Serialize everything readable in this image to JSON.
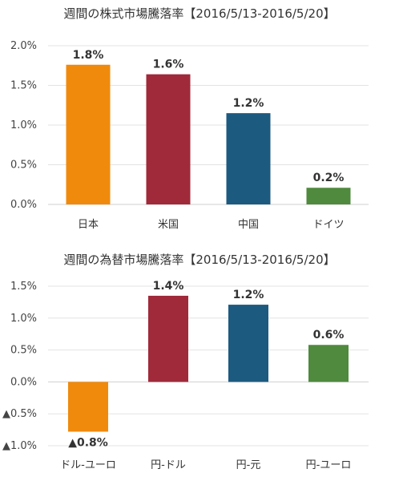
{
  "chart_data": [
    {
      "type": "bar",
      "title": "週間の株式市場騰落率【2016/5/13-2016/5/20】",
      "categories": [
        "日本",
        "米国",
        "中国",
        "ドイツ"
      ],
      "values": [
        1.76,
        1.64,
        1.15,
        0.21
      ],
      "data_labels": [
        "1.8%",
        "1.6%",
        "1.2%",
        "0.2%"
      ],
      "colors": [
        "#f08a0c",
        "#a02a3a",
        "#1d5a80",
        "#4f8a3e"
      ],
      "ylim": [
        0,
        2.0
      ],
      "yticks": [
        0,
        0.5,
        1.0,
        1.5,
        2.0
      ],
      "ytick_labels": [
        "0.0%",
        "0.5%",
        "1.0%",
        "1.5%",
        "2.0%"
      ],
      "grid": true,
      "legend": "none",
      "xlabel": "",
      "ylabel": ""
    },
    {
      "type": "bar",
      "title": "週間の為替市場騰落率【2016/5/13-2016/5/20】",
      "categories": [
        "ドル-ユーロ",
        "円-ドル",
        "円-元",
        "円-ユーロ"
      ],
      "values": [
        -0.78,
        1.35,
        1.21,
        0.58
      ],
      "data_labels": [
        "▲0.8%",
        "1.4%",
        "1.2%",
        "0.6%"
      ],
      "colors": [
        "#f08a0c",
        "#a02a3a",
        "#1d5a80",
        "#4f8a3e"
      ],
      "ylim": [
        -1.0,
        1.5
      ],
      "yticks": [
        -1.0,
        -0.5,
        0,
        0.5,
        1.0,
        1.5
      ],
      "ytick_labels": [
        "▲1.0%",
        "▲0.5%",
        "0.0%",
        "0.5%",
        "1.0%",
        "1.5%"
      ],
      "grid": true,
      "legend": "none",
      "xlabel": "",
      "ylabel": ""
    }
  ]
}
